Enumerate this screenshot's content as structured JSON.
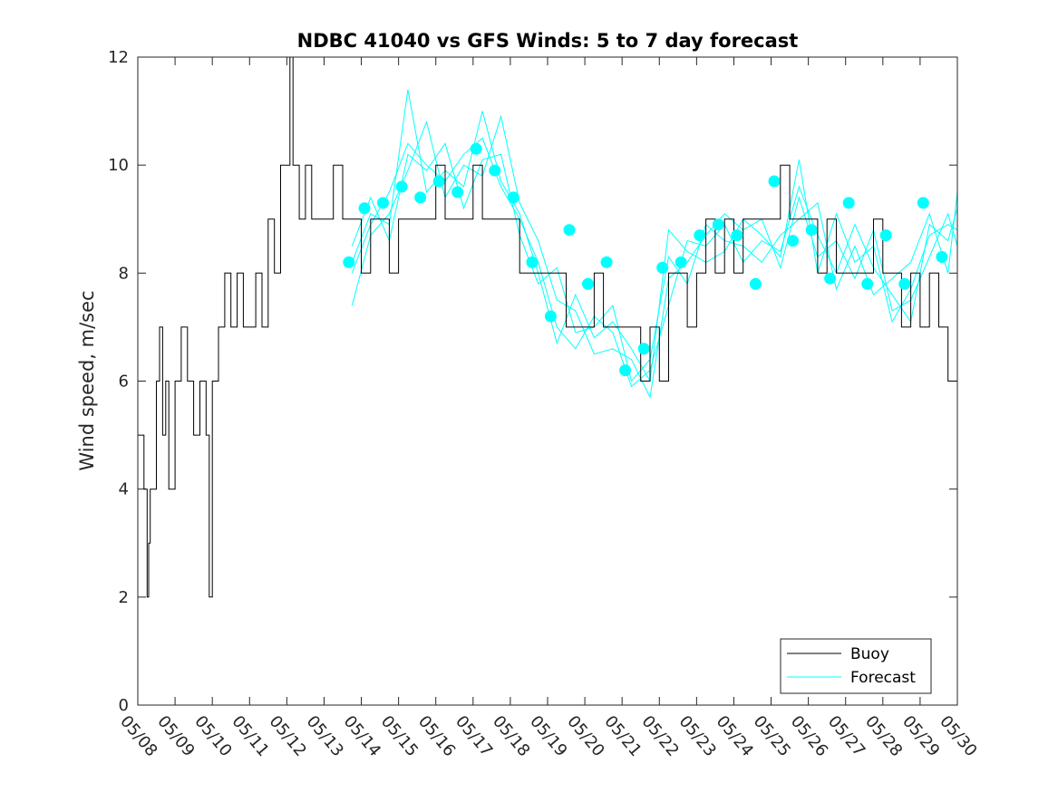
{
  "chart_data": {
    "type": "line",
    "title": "NDBC 41040 vs GFS Winds: 5 to 7 day forecast",
    "xlabel": "",
    "ylabel": "Wind speed, m/sec",
    "ylim": [
      0,
      12
    ],
    "yticks": [
      "0",
      "2",
      "4",
      "6",
      "8",
      "10",
      "12"
    ],
    "xlim": [
      "05/08",
      "05/30"
    ],
    "xticks": [
      "05/08",
      "05/09",
      "05/10",
      "05/11",
      "05/12",
      "05/13",
      "05/14",
      "05/15",
      "05/16",
      "05/17",
      "05/18",
      "05/19",
      "05/20",
      "05/21",
      "05/22",
      "05/23",
      "05/24",
      "05/25",
      "05/26",
      "05/27",
      "05/28",
      "05/29",
      "05/30"
    ],
    "grid": false,
    "legend_position": "bottom-right",
    "legend": [
      "Buoy",
      "Forecast"
    ],
    "colors": {
      "buoy": "#000000",
      "forecast": "#00ffff"
    },
    "buoy_series": {
      "name": "Buoy",
      "x": [
        "05/08 00:00",
        "05/08 04:00",
        "05/08 06:00",
        "05/08 07:00",
        "05/08 08:00",
        "05/08 10:00",
        "05/08 12:00",
        "05/08 14:00",
        "05/08 16:00",
        "05/08 18:00",
        "05/08 20:00",
        "05/09 00:00",
        "05/09 04:00",
        "05/09 08:00",
        "05/09 12:00",
        "05/09 16:00",
        "05/09 20:00",
        "05/09 22:00",
        "05/10 00:00",
        "05/10 04:00",
        "05/10 08:00",
        "05/10 12:00",
        "05/10 16:00",
        "05/10 20:00",
        "05/11 00:00",
        "05/11 04:00",
        "05/11 08:00",
        "05/11 12:00",
        "05/11 16:00",
        "05/11 20:00",
        "05/12 00:00",
        "05/12 02:00",
        "05/12 04:00",
        "05/12 08:00",
        "05/12 12:00",
        "05/12 16:00",
        "05/12 20:00",
        "05/13 00:00",
        "05/13 06:00",
        "05/13 12:00",
        "05/13 18:00",
        "05/14 00:00",
        "05/14 06:00",
        "05/14 12:00",
        "05/14 18:00",
        "05/15 00:00",
        "05/15 06:00",
        "05/15 12:00",
        "05/15 18:00",
        "05/16 00:00",
        "05/16 06:00",
        "05/16 12:00",
        "05/16 18:00",
        "05/17 00:00",
        "05/17 06:00",
        "05/17 12:00",
        "05/17 18:00",
        "05/18 00:00",
        "05/18 06:00",
        "05/18 12:00",
        "05/18 18:00",
        "05/19 00:00",
        "05/19 06:00",
        "05/19 12:00",
        "05/19 18:00",
        "05/20 00:00",
        "05/20 06:00",
        "05/20 12:00",
        "05/20 18:00",
        "05/21 00:00",
        "05/21 06:00",
        "05/21 12:00",
        "05/21 18:00",
        "05/22 00:00",
        "05/22 06:00",
        "05/22 12:00",
        "05/22 18:00",
        "05/23 00:00",
        "05/23 06:00",
        "05/23 12:00",
        "05/23 18:00",
        "05/24 00:00",
        "05/24 06:00",
        "05/24 12:00",
        "05/24 18:00",
        "05/25 00:00",
        "05/25 06:00",
        "05/25 12:00",
        "05/25 18:00",
        "05/26 00:00",
        "05/26 06:00",
        "05/26 12:00",
        "05/26 18:00",
        "05/27 00:00",
        "05/27 06:00",
        "05/27 12:00",
        "05/27 18:00",
        "05/28 00:00",
        "05/28 06:00",
        "05/28 12:00",
        "05/28 18:00",
        "05/29 00:00",
        "05/29 06:00",
        "05/29 12:00",
        "05/29 18:00",
        "05/30 00:00"
      ],
      "values": [
        5,
        4,
        2,
        3,
        4,
        4,
        6,
        7,
        5,
        6,
        4,
        6,
        7,
        6,
        5,
        6,
        5,
        2,
        6,
        7,
        8,
        7,
        8,
        7,
        7,
        8,
        7,
        9,
        8,
        10,
        10,
        12,
        10,
        9,
        10,
        9,
        9,
        9,
        10,
        9,
        9,
        8,
        9,
        9,
        8,
        9,
        9,
        9,
        9,
        10,
        9,
        9,
        9,
        10,
        9,
        9,
        9,
        9,
        8,
        8,
        8,
        8,
        8,
        7,
        7,
        7,
        8,
        7,
        7,
        7,
        7,
        6,
        7,
        6,
        8,
        8,
        7,
        8,
        9,
        8,
        9,
        8,
        9,
        9,
        9,
        9,
        10,
        9,
        9,
        9,
        8,
        9,
        8,
        8,
        8,
        8,
        9,
        8,
        8,
        7,
        8,
        7,
        8,
        7,
        6,
        null
      ]
    },
    "forecast_markers": {
      "name": "Forecast",
      "x": [
        "05/13 16:00",
        "05/14 02:00",
        "05/14 14:00",
        "05/15 02:00",
        "05/15 14:00",
        "05/16 02:00",
        "05/16 14:00",
        "05/17 02:00",
        "05/17 14:00",
        "05/18 02:00",
        "05/18 14:00",
        "05/19 02:00",
        "05/19 14:00",
        "05/20 02:00",
        "05/20 14:00",
        "05/21 02:00",
        "05/21 14:00",
        "05/22 02:00",
        "05/22 14:00",
        "05/23 02:00",
        "05/23 14:00",
        "05/24 02:00",
        "05/24 14:00",
        "05/25 02:00",
        "05/25 14:00",
        "05/26 02:00",
        "05/26 14:00",
        "05/27 02:00",
        "05/27 14:00",
        "05/28 02:00",
        "05/28 14:00",
        "05/29 02:00",
        "05/29 14:00"
      ],
      "values": [
        8.2,
        9.2,
        9.3,
        9.6,
        9.4,
        9.7,
        9.5,
        10.3,
        9.9,
        9.4,
        8.2,
        7.2,
        8.8,
        7.8,
        8.2,
        6.2,
        6.6,
        8.1,
        8.2,
        8.7,
        8.9,
        8.7,
        7.8,
        9.7,
        8.6,
        8.8,
        7.9,
        9.3,
        7.8,
        8.7,
        7.8,
        9.3,
        8.3
      ]
    },
    "forecast_runs": [
      {
        "name": "",
        "x": [
          "05/13 18:00",
          "05/14 06:00",
          "05/14 18:00",
          "05/15 06:00",
          "05/15 18:00",
          "05/16 06:00",
          "05/16 18:00",
          "05/17 06:00",
          "05/17 18:00",
          "05/18 06:00",
          "05/18 18:00",
          "05/19 06:00",
          "05/19 18:00",
          "05/20 06:00",
          "05/20 18:00",
          "05/21 06:00",
          "05/21 18:00",
          "05/22 06:00",
          "05/22 18:00",
          "05/23 06:00",
          "05/23 18:00",
          "05/24 06:00",
          "05/24 18:00",
          "05/25 06:00",
          "05/25 18:00",
          "05/26 06:00",
          "05/26 18:00",
          "05/27 06:00",
          "05/27 18:00",
          "05/28 06:00",
          "05/28 18:00",
          "05/29 06:00",
          "05/29 18:00",
          "05/30 00:00"
        ],
        "values": [
          8.0,
          8.9,
          9.5,
          10.4,
          10.0,
          9.7,
          10.2,
          10.5,
          9.6,
          9.0,
          8.2,
          7.0,
          6.6,
          7.2,
          6.9,
          5.9,
          6.2,
          7.4,
          8.6,
          8.5,
          8.9,
          8.2,
          8.6,
          8.4,
          9.6,
          8.7,
          8.0,
          8.9,
          8.1,
          7.6,
          7.1,
          8.9,
          8.6,
          9.2
        ]
      },
      {
        "name": "",
        "x": [
          "05/13 18:00",
          "05/14 06:00",
          "05/14 18:00",
          "05/15 06:00",
          "05/15 18:00",
          "05/16 06:00",
          "05/16 18:00",
          "05/17 06:00",
          "05/17 18:00",
          "05/18 06:00",
          "05/18 18:00",
          "05/19 06:00",
          "05/19 18:00",
          "05/20 06:00",
          "05/20 18:00",
          "05/21 06:00",
          "05/21 18:00",
          "05/22 06:00",
          "05/22 18:00",
          "05/23 06:00",
          "05/23 18:00",
          "05/24 06:00",
          "05/24 18:00",
          "05/25 06:00",
          "05/25 18:00",
          "05/26 06:00",
          "05/26 18:00",
          "05/27 06:00",
          "05/27 18:00",
          "05/28 06:00",
          "05/28 18:00",
          "05/29 06:00",
          "05/29 18:00",
          "05/30 00:00"
        ],
        "values": [
          7.4,
          8.7,
          9.1,
          9.9,
          10.8,
          9.4,
          10.0,
          9.8,
          10.9,
          9.3,
          8.6,
          7.5,
          7.3,
          6.5,
          6.6,
          6.4,
          5.7,
          7.9,
          8.2,
          8.7,
          9.1,
          8.8,
          9.0,
          8.1,
          9.4,
          8.3,
          8.6,
          7.9,
          8.8,
          7.3,
          7.5,
          8.3,
          9.1,
          8.5
        ]
      },
      {
        "name": "",
        "x": [
          "05/13 18:00",
          "05/14 06:00",
          "05/14 18:00",
          "05/15 06:00",
          "05/15 18:00",
          "05/16 06:00",
          "05/16 18:00",
          "05/17 06:00",
          "05/17 18:00",
          "05/18 06:00",
          "05/18 18:00",
          "05/19 06:00",
          "05/19 18:00",
          "05/20 06:00",
          "05/20 18:00",
          "05/21 06:00",
          "05/21 18:00",
          "05/22 06:00",
          "05/22 18:00",
          "05/23 06:00",
          "05/23 18:00",
          "05/24 06:00",
          "05/24 18:00",
          "05/25 06:00",
          "05/25 18:00",
          "05/26 06:00",
          "05/26 18:00",
          "05/27 06:00",
          "05/27 18:00",
          "05/28 06:00",
          "05/28 18:00",
          "05/29 06:00",
          "05/29 18:00",
          "05/30 00:00"
        ],
        "values": [
          8.5,
          9.4,
          8.6,
          10.2,
          9.9,
          10.4,
          9.2,
          10.1,
          10.2,
          8.7,
          7.8,
          8.1,
          6.9,
          7.0,
          7.4,
          6.0,
          6.4,
          8.3,
          7.8,
          8.9,
          8.6,
          8.5,
          8.2,
          8.7,
          9.0,
          9.3,
          7.7,
          8.5,
          7.6,
          7.9,
          8.2,
          9.1,
          8.0,
          9.5
        ]
      },
      {
        "name": "",
        "x": [
          "05/13 18:00",
          "05/14 06:00",
          "05/14 18:00",
          "05/15 06:00",
          "05/15 18:00",
          "05/16 06:00",
          "05/16 18:00",
          "05/17 06:00",
          "05/17 18:00",
          "05/18 06:00",
          "05/18 18:00",
          "05/19 06:00",
          "05/19 18:00",
          "05/20 06:00",
          "05/20 18:00",
          "05/21 06:00",
          "05/21 18:00",
          "05/22 06:00",
          "05/22 18:00",
          "05/23 06:00",
          "05/23 18:00",
          "05/24 06:00",
          "05/24 18:00",
          "05/25 06:00",
          "05/25 18:00",
          "05/26 06:00",
          "05/26 18:00",
          "05/27 06:00",
          "05/27 18:00",
          "05/28 06:00",
          "05/28 18:00",
          "05/29 06:00",
          "05/29 18:00",
          "05/30 00:00"
        ],
        "values": [
          8.2,
          9.1,
          8.9,
          11.4,
          9.5,
          9.9,
          9.6,
          11.0,
          9.7,
          9.1,
          8.0,
          6.7,
          7.6,
          6.8,
          7.1,
          6.6,
          6.0,
          8.8,
          8.4,
          8.2,
          8.4,
          9.0,
          8.7,
          8.3,
          10.1,
          8.0,
          9.1,
          8.2,
          8.5,
          7.1,
          7.7,
          8.7,
          8.9,
          8.8
        ]
      }
    ]
  }
}
